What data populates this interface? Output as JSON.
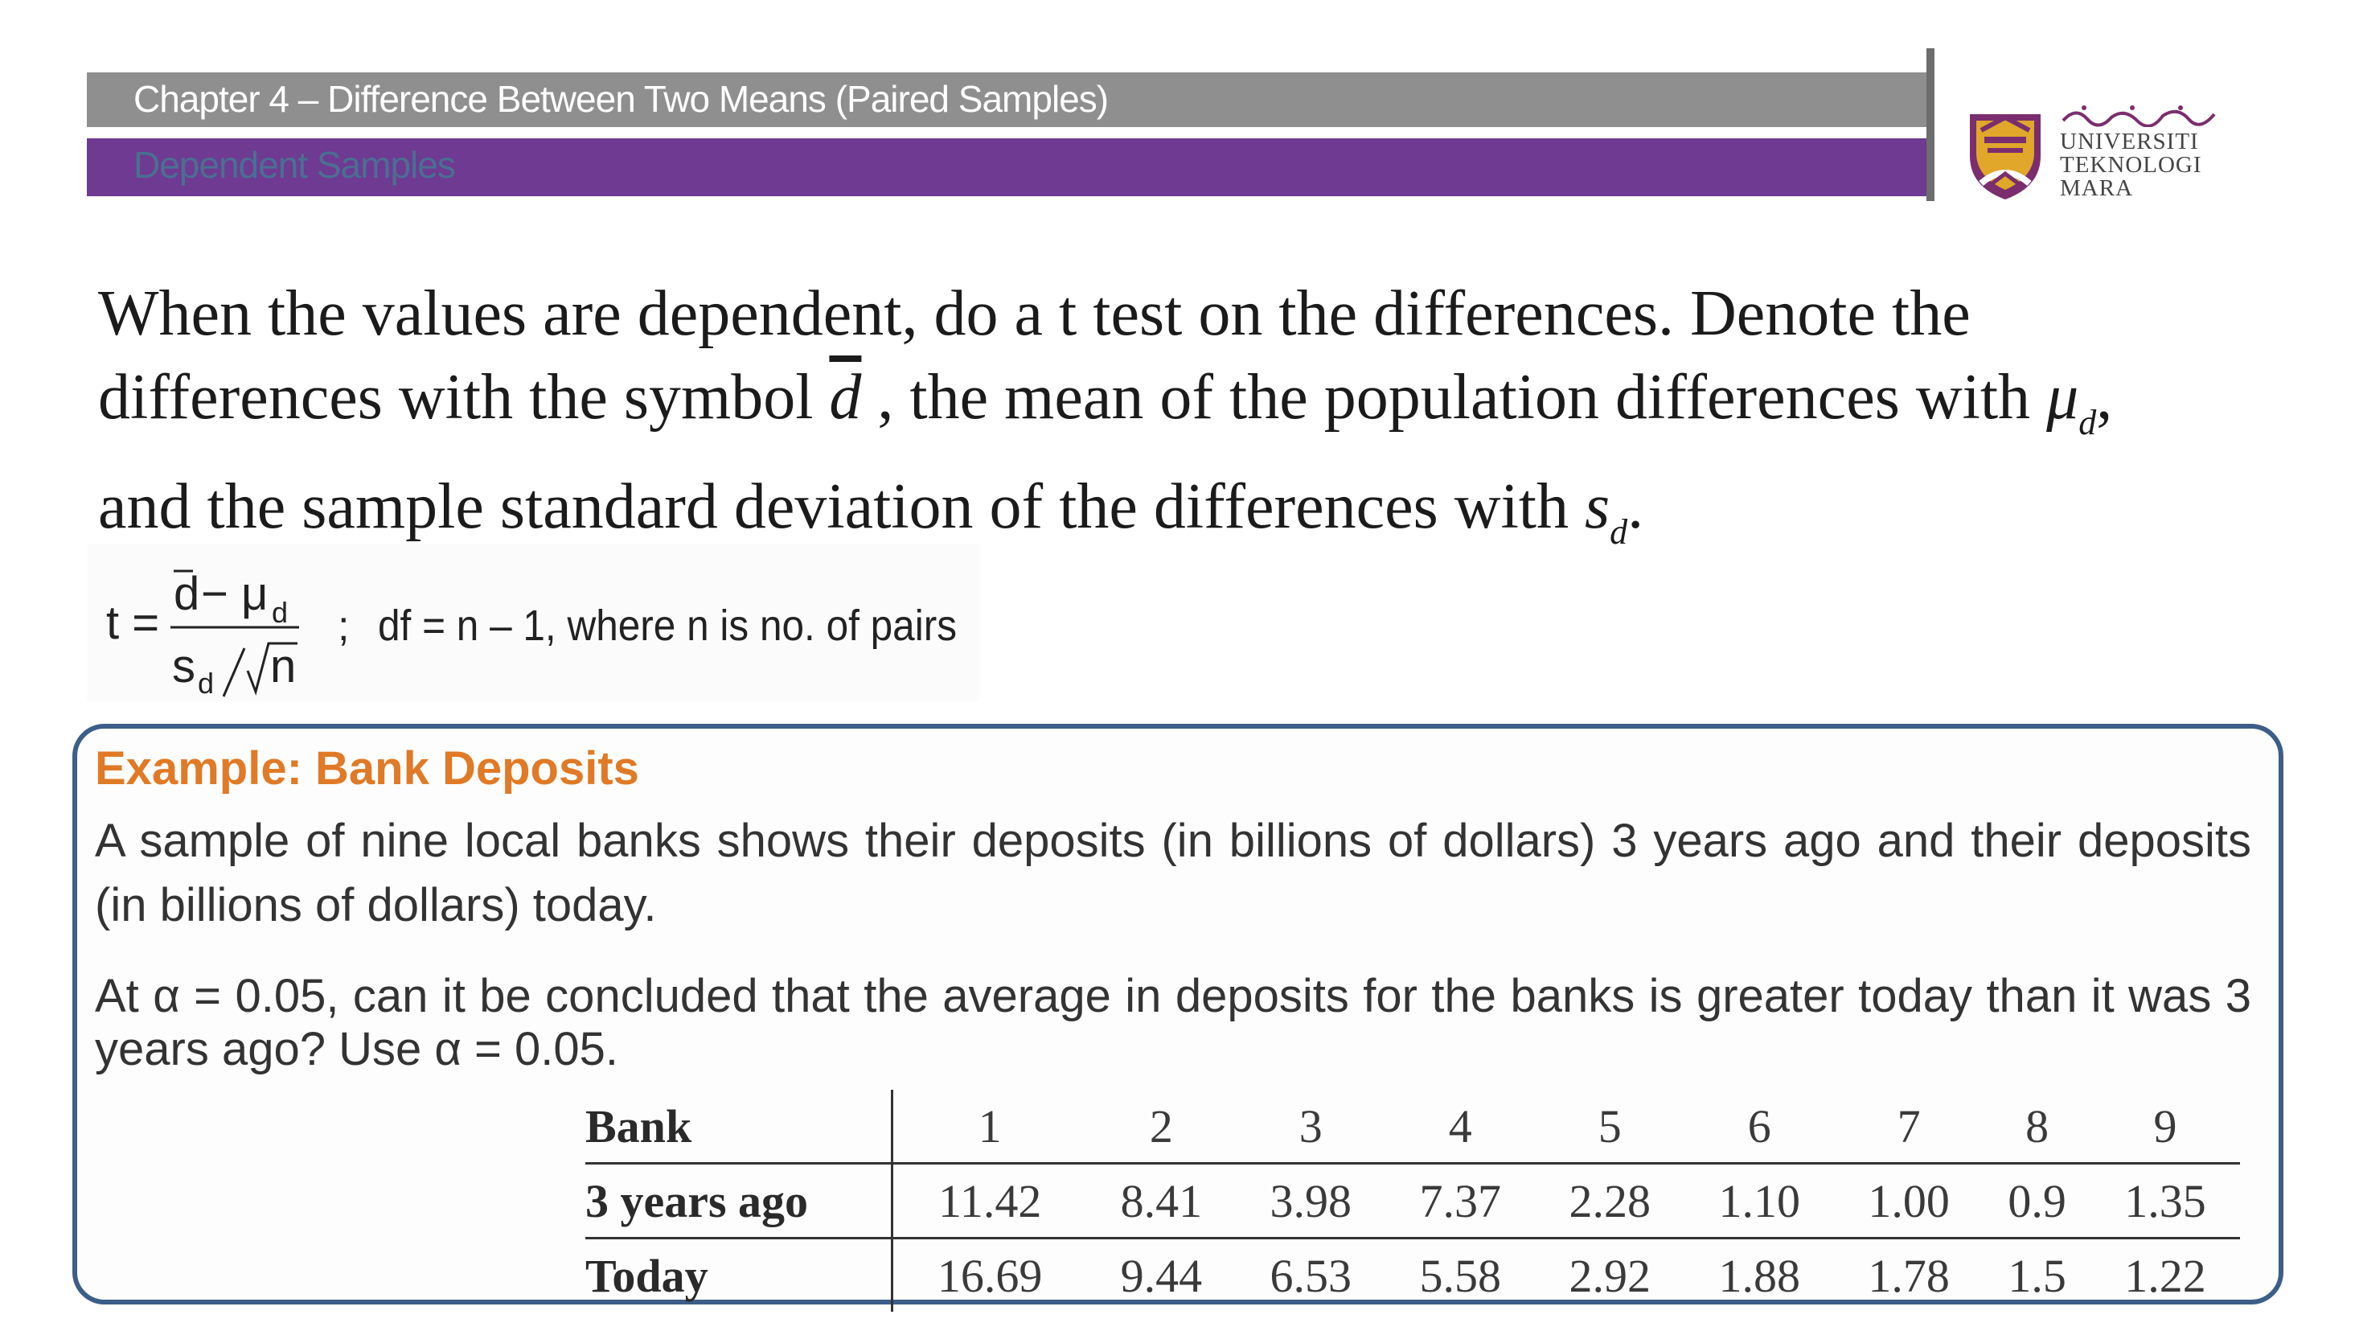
{
  "header": {
    "title": "Chapter 4 – Difference Between Two Means (Paired Samples)",
    "subtitle": "Dependent Samples"
  },
  "logo": {
    "line1": "UNIVERSITI",
    "line2": "TEKNOLOGI",
    "line3": "MARA"
  },
  "intro": {
    "line1": "When the values are dependent, do a t test on the differences. Denote the",
    "line2_a": "differences with the symbol",
    "dbar_symbol": "d",
    "line2_b": ",  the mean of the population differences with",
    "mu_symbol": "μ",
    "mu_sub": "d",
    "line2_c": ",",
    "line3_a": "and the sample standard deviation of the differences with",
    "s_symbol": "s",
    "s_sub": "d",
    "line3_b": "."
  },
  "formula": {
    "t_eq": "t =",
    "numerator_dbar": "d",
    "numerator_rest": "− μ",
    "numerator_sub": "d",
    "den_s": "s",
    "den_sub": "d",
    "den_n": "n",
    "semicolon": ";",
    "df_text": "df = n – 1,  where n is no. of pairs"
  },
  "example": {
    "title": "Example: Bank Deposits",
    "para1": "A sample of nine local banks shows their deposits (in billions  of dollars) 3 years ago and their deposits (in billions of  dollars) today.",
    "para2": "At α = 0.05, can it be concluded that the average in deposits  for the banks is greater today than it was 3 years ago? Use α = 0.05."
  },
  "table": {
    "header_label": "Bank",
    "banks": [
      "1",
      "2",
      "3",
      "4",
      "5",
      "6",
      "7",
      "8",
      "9"
    ],
    "row1_label": "3 years ago",
    "row1": [
      "11.42",
      "8.41",
      "3.98",
      "7.37",
      "2.28",
      "1.10",
      "1.00",
      "0.9",
      "1.35"
    ],
    "row2_label": "Today",
    "row2": [
      "16.69",
      "9.44",
      "6.53",
      "5.58",
      "2.92",
      "1.88",
      "1.78",
      "1.5",
      "1.22"
    ]
  },
  "colors": {
    "header_gray": "#8f8f8f",
    "header_purple": "#6f3a91",
    "subtitle_text": "#4a6f93",
    "example_title": "#e07a26",
    "example_border": "#3c5e88"
  }
}
